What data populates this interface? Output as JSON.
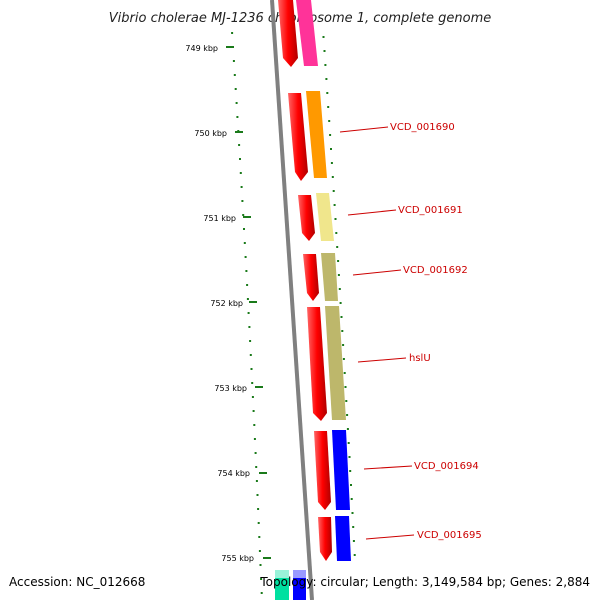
{
  "title": "Vibrio cholerae MJ-1236 chromosome 1, complete genome",
  "accession": "Accession: NC_012668",
  "topology": "Topology: circular; Length: 3,149,584 bp; Genes: 2,884",
  "ticks": [
    "749 kbp",
    "750 kbp",
    "751 kbp",
    "752 kbp",
    "753 kbp",
    "754 kbp",
    "755 kbp"
  ],
  "gene_labels": [
    "VCD_001690",
    "VCD_001691",
    "VCD_001692",
    "hslU",
    "VCD_001694",
    "VCD_001695"
  ],
  "colors": {
    "backbone": "#808080",
    "tick": "#1a7a1a",
    "label": "#cc0000",
    "cds": "#ff0000",
    "gene_colors": [
      "#ff9900",
      "#f0e68c",
      "#bdb76b",
      "#bdb76b",
      "#0000ff",
      "#0000ff"
    ],
    "top_gene": "#ff3399",
    "bottom_genes": [
      "#00e0a0",
      "#0000ff"
    ]
  }
}
